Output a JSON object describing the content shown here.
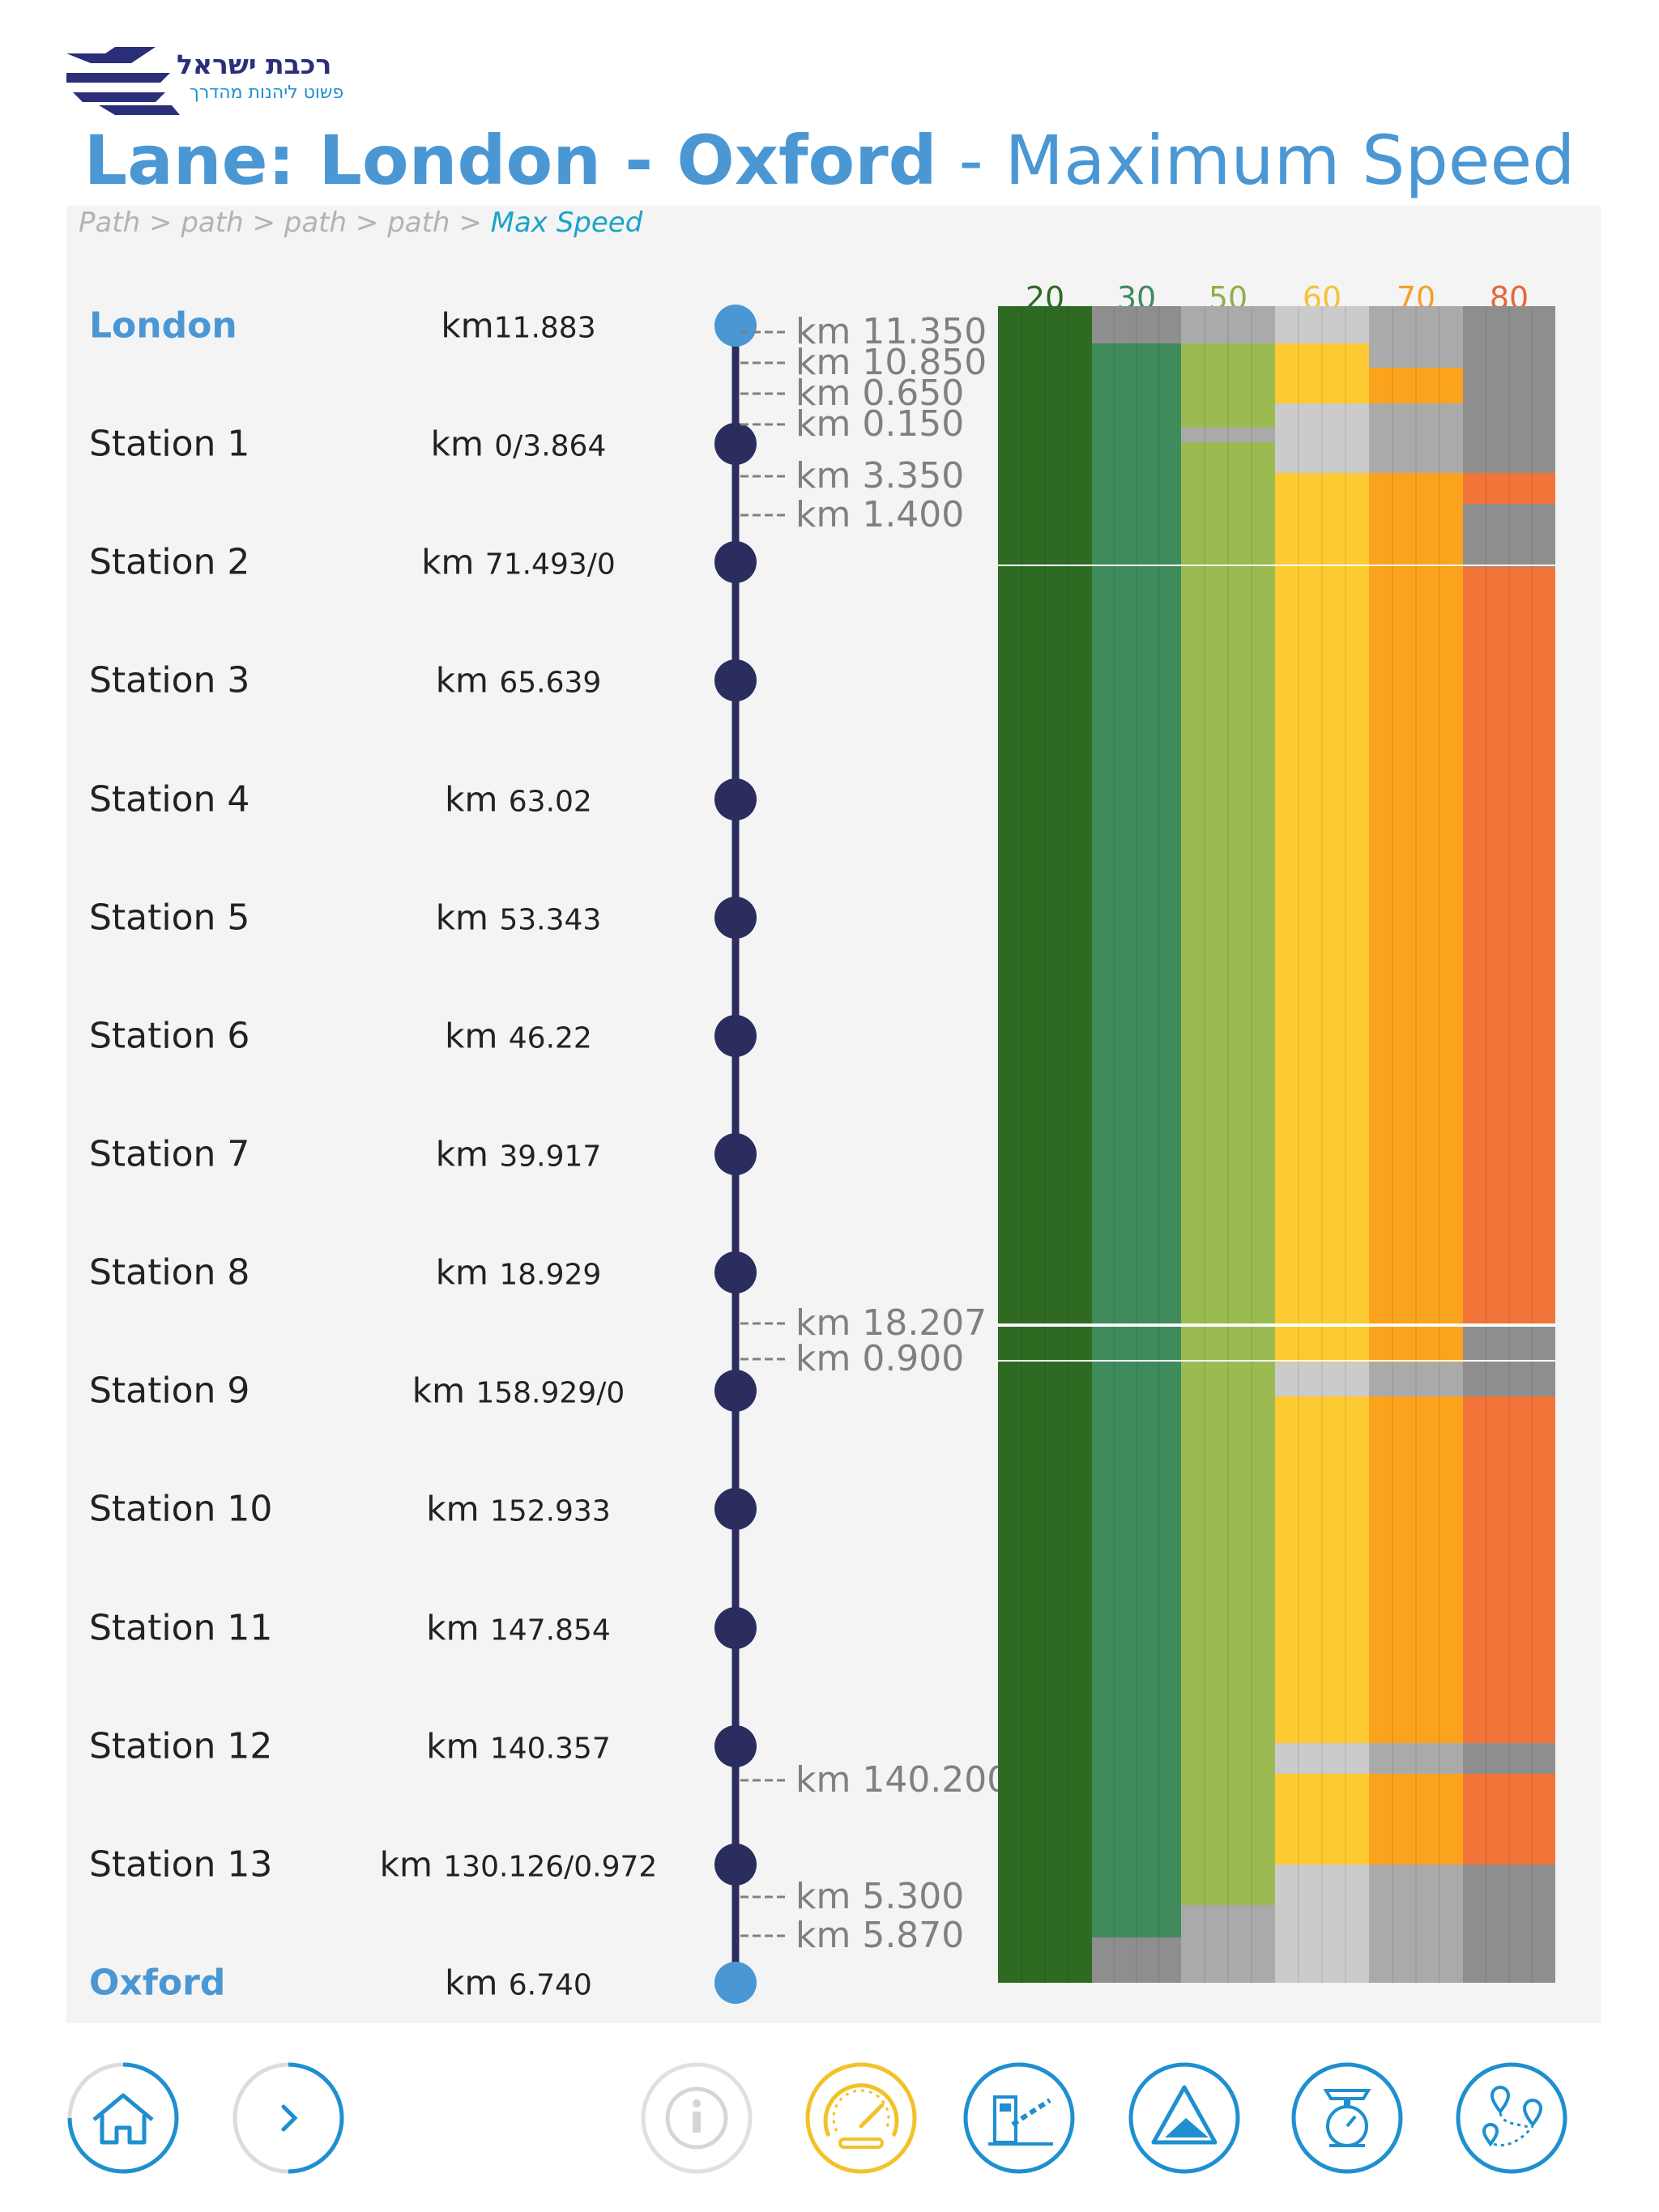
{
  "logo": {
    "name": "רכבת ישראל",
    "tagline": "פשוט ליהנות מהדרך"
  },
  "title": {
    "bold": "Lane: London - Oxford",
    "rest": "- Maximum Speed"
  },
  "breadcrumb": [
    "Path",
    "path",
    "path",
    "path"
  ],
  "breadcrumb_sep": ">",
  "breadcrumb_current": "Max Speed",
  "stations": [
    {
      "name": "London",
      "km_prefix": "km",
      "km": "11.883",
      "endpoint": true
    },
    {
      "name": "Station 1",
      "km_prefix": "km ",
      "km": "0/3.864",
      "endpoint": false
    },
    {
      "name": "Station 2",
      "km_prefix": "km ",
      "km": "71.493/0",
      "endpoint": false
    },
    {
      "name": "Station 3",
      "km_prefix": "km ",
      "km": "65.639",
      "endpoint": false
    },
    {
      "name": "Station 4",
      "km_prefix": "km ",
      "km": "63.02",
      "endpoint": false
    },
    {
      "name": "Station 5",
      "km_prefix": "km ",
      "km": "53.343",
      "endpoint": false
    },
    {
      "name": "Station 6",
      "km_prefix": "km ",
      "km": "46.22",
      "endpoint": false
    },
    {
      "name": "Station 7",
      "km_prefix": "km ",
      "km": "39.917",
      "endpoint": false
    },
    {
      "name": "Station 8",
      "km_prefix": "km ",
      "km": "18.929",
      "endpoint": false
    },
    {
      "name": "Station 9",
      "km_prefix": "km ",
      "km": "158.929/0",
      "endpoint": false
    },
    {
      "name": "Station 10",
      "km_prefix": "km ",
      "km": "152.933",
      "endpoint": false
    },
    {
      "name": "Station 11",
      "km_prefix": "km ",
      "km": "147.854",
      "endpoint": false
    },
    {
      "name": "Station 12",
      "km_prefix": "km ",
      "km": "140.357",
      "endpoint": false
    },
    {
      "name": "Station 13",
      "km_prefix": "km ",
      "km": "130.126/0.972",
      "endpoint": false
    },
    {
      "name": "Oxford",
      "km_prefix": "km ",
      "km": "6.740",
      "endpoint": true
    }
  ],
  "km_markers": [
    "km 11.350",
    "km 10.850",
    "km 0.650",
    "km 0.150",
    "km 3.350",
    "km 1.400",
    "km 18.207",
    "km 0.900",
    "km 140.200",
    "km 5.300",
    "km 5.870"
  ],
  "speed_levels": [
    {
      "label": "20",
      "color": "#2f6a23",
      "label_color": "#2f6a23"
    },
    {
      "label": "30",
      "color": "#3f8b5c",
      "label_color": "#3f8b5c"
    },
    {
      "label": "50",
      "color": "#9bbb52",
      "label_color": "#8db04a"
    },
    {
      "label": "60",
      "color": "#fdca32",
      "label_color": "#f5c23a"
    },
    {
      "label": "70",
      "color": "#fba31d",
      "label_color": "#f3a12b"
    },
    {
      "label": "80",
      "color": "#f17538",
      "label_color": "#e4683b"
    }
  ],
  "colors": {
    "accent": "#4a97d4",
    "line": "#2b2d5e",
    "panel": "#f4f4f4",
    "inactive_light": "#cbcbcb",
    "inactive_mid": "#aaaaaa",
    "inactive_dark": "#8e8e8e",
    "nav_blue": "#1e8fd0",
    "nav_yellow": "#f2c22a"
  },
  "nav": [
    {
      "name": "home-button",
      "icon": "home-icon"
    },
    {
      "name": "next-button",
      "icon": "chevron-right-icon"
    },
    {
      "name": "info-button",
      "icon": "info-icon"
    },
    {
      "name": "max-speed-button",
      "icon": "speedometer-icon"
    },
    {
      "name": "level-crossing-button",
      "icon": "barrier-icon"
    },
    {
      "name": "gradient-button",
      "icon": "slope-icon"
    },
    {
      "name": "weight-button",
      "icon": "scale-icon"
    },
    {
      "name": "route-button",
      "icon": "route-pins-icon"
    }
  ]
}
